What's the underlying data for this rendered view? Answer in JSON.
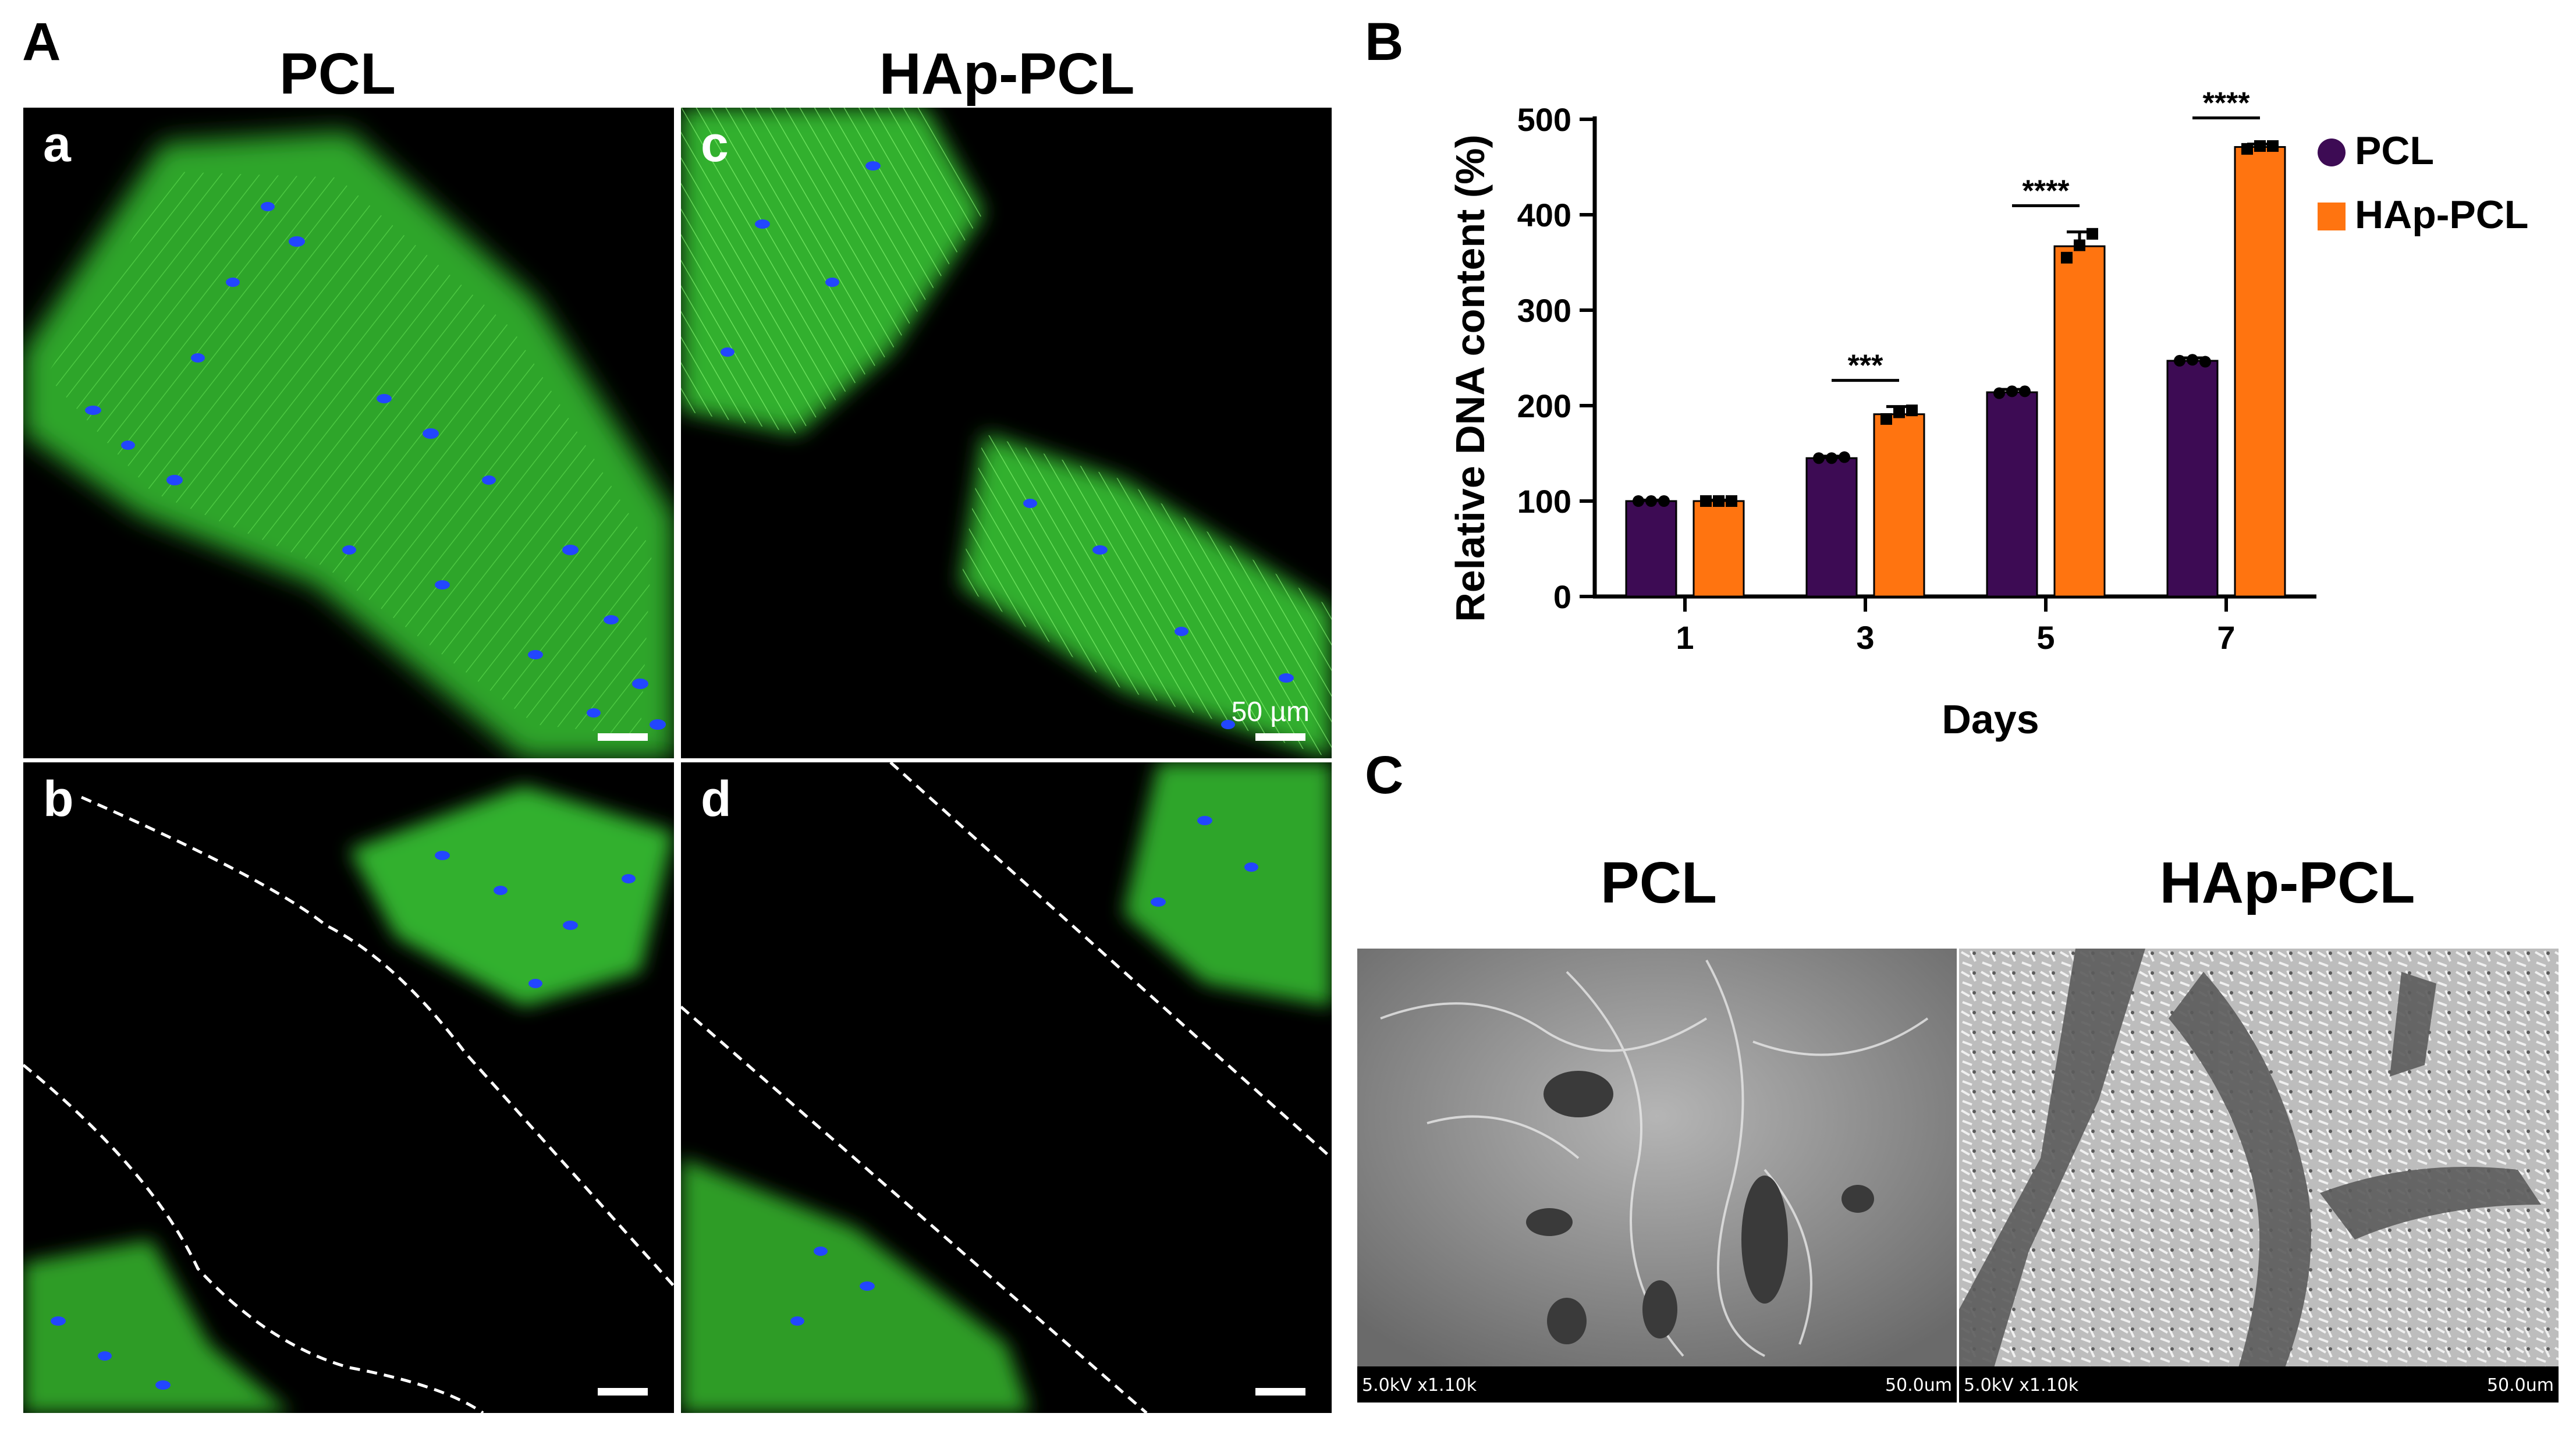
{
  "panels": {
    "A": "A",
    "B": "B",
    "C": "C"
  },
  "panel_a": {
    "col_left": "PCL",
    "col_right": "HAp-PCL",
    "sub_a": "a",
    "sub_b": "b",
    "sub_c": "c",
    "sub_d": "d",
    "scale_text": "50 µm"
  },
  "panel_c": {
    "col_left": "PCL",
    "col_right": "HAp-PCL",
    "left_info": "5.0kV x1.10k",
    "left_scale": "50.0um",
    "right_info": "5.0kV x1.10k",
    "right_scale": "50.0um"
  },
  "colors": {
    "pcl": "#3d0b54",
    "hap_pcl": "#ff7410",
    "actin": "#3ec83a",
    "nuclei": "#1e3cff"
  },
  "chart_data": {
    "type": "bar",
    "xlabel": "Days",
    "ylabel": "Relative DNA content (%)",
    "categories": [
      "1",
      "3",
      "5",
      "7"
    ],
    "ylim": [
      0,
      500
    ],
    "yticks": [
      0,
      100,
      200,
      300,
      400,
      500
    ],
    "legend_position": "right",
    "series": [
      {
        "name": "PCL",
        "marker": "circle",
        "values": [
          100,
          145,
          214,
          247
        ],
        "error": [
          1,
          2,
          3,
          3
        ],
        "points": [
          [
            100,
            100,
            100
          ],
          [
            145,
            145,
            146
          ],
          [
            213,
            215,
            215
          ],
          [
            247,
            248,
            246
          ]
        ]
      },
      {
        "name": "HAp-PCL",
        "marker": "square",
        "values": [
          100,
          191,
          367,
          471
        ],
        "error": [
          1,
          8,
          15,
          3
        ],
        "points": [
          [
            100,
            100,
            100
          ],
          [
            186,
            193,
            195
          ],
          [
            355,
            368,
            380
          ],
          [
            469,
            472,
            472
          ]
        ]
      }
    ],
    "significance": [
      {
        "category": "3",
        "label": "***"
      },
      {
        "category": "5",
        "label": "****"
      },
      {
        "category": "7",
        "label": "****"
      }
    ]
  }
}
